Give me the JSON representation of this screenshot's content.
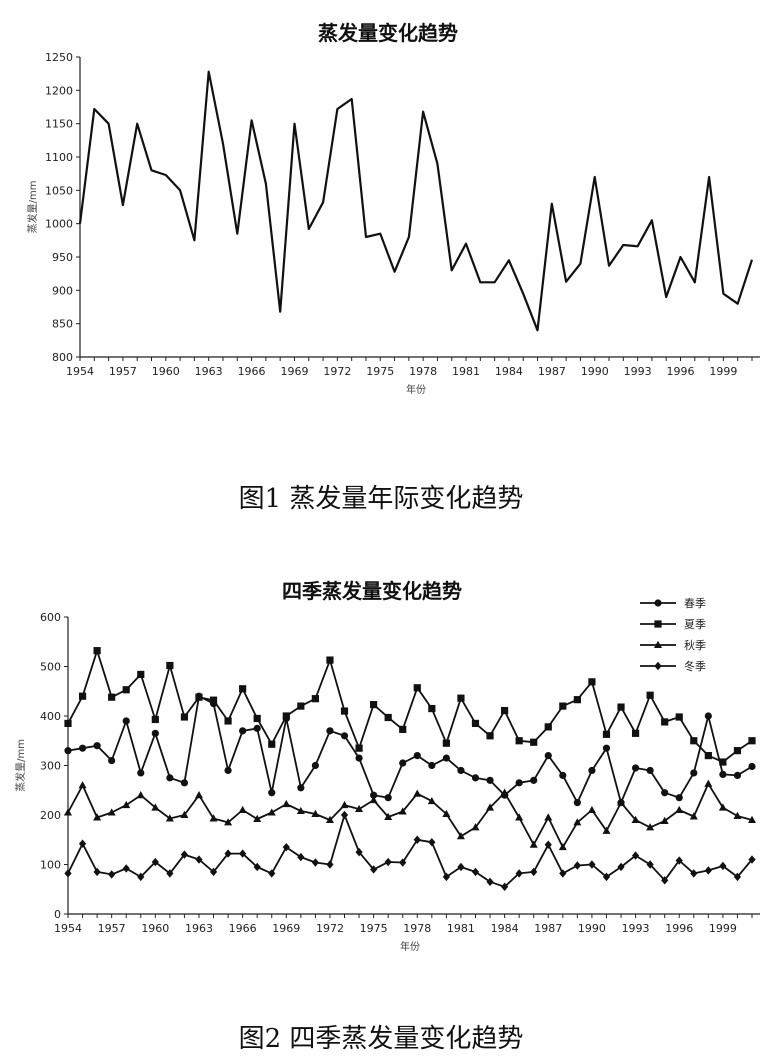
{
  "chart_data": [
    {
      "type": "line",
      "title": "蒸发量变化趋势",
      "xlabel": "年份",
      "ylabel": "蒸发量/mm",
      "ylim": [
        800,
        1250
      ],
      "yticks": [
        800,
        850,
        900,
        950,
        1000,
        1050,
        1100,
        1150,
        1200,
        1250
      ],
      "xlim": [
        1954,
        2001
      ],
      "xticks": [
        1954,
        1957,
        1960,
        1963,
        1966,
        1969,
        1972,
        1975,
        1978,
        1981,
        1984,
        1987,
        1990,
        1993,
        1996,
        1999
      ],
      "grid": false,
      "x": [
        1954,
        1955,
        1956,
        1957,
        1958,
        1959,
        1960,
        1961,
        1962,
        1963,
        1964,
        1965,
        1966,
        1967,
        1968,
        1969,
        1970,
        1971,
        1972,
        1973,
        1974,
        1975,
        1976,
        1977,
        1978,
        1979,
        1980,
        1981,
        1982,
        1983,
        1984,
        1985,
        1986,
        1987,
        1988,
        1989,
        1990,
        1991,
        1992,
        1993,
        1994,
        1995,
        1996,
        1997,
        1998,
        1999,
        2000,
        2001
      ],
      "series": [
        {
          "values": [
            1000,
            1172,
            1150,
            1028,
            1150,
            1080,
            1073,
            1050,
            975,
            1228,
            1120,
            985,
            1155,
            1060,
            868,
            1150,
            992,
            1032,
            1172,
            1187,
            980,
            985,
            928,
            980,
            1168,
            1090,
            930,
            970,
            912,
            912,
            945,
            895,
            840,
            1030,
            913,
            940,
            1070,
            937,
            968,
            966,
            1005,
            890,
            950,
            912,
            1070,
            895,
            880,
            946
          ]
        }
      ],
      "color": "#111111"
    },
    {
      "type": "line",
      "title": "四季蒸发量变化趋势",
      "xlabel": "年份",
      "ylabel": "蒸发量/mm",
      "ylim": [
        0,
        600
      ],
      "yticks": [
        0,
        100,
        200,
        300,
        400,
        500,
        600
      ],
      "xlim": [
        1954,
        2001
      ],
      "xticks": [
        1954,
        1957,
        1960,
        1963,
        1966,
        1969,
        1972,
        1975,
        1978,
        1981,
        1984,
        1987,
        1990,
        1993,
        1996,
        1999
      ],
      "grid": false,
      "legend_position": "top-right",
      "x": [
        1954,
        1955,
        1956,
        1957,
        1958,
        1959,
        1960,
        1961,
        1962,
        1963,
        1964,
        1965,
        1966,
        1967,
        1968,
        1969,
        1970,
        1971,
        1972,
        1973,
        1974,
        1975,
        1976,
        1977,
        1978,
        1979,
        1980,
        1981,
        1982,
        1983,
        1984,
        1985,
        1986,
        1987,
        1988,
        1989,
        1990,
        1991,
        1992,
        1993,
        1994,
        1995,
        1996,
        1997,
        1998,
        1999,
        2000,
        2001
      ],
      "series": [
        {
          "name": "春季",
          "marker": "circle",
          "values": [
            330,
            335,
            340,
            310,
            390,
            285,
            365,
            275,
            265,
            440,
            425,
            290,
            370,
            375,
            245,
            395,
            255,
            300,
            370,
            360,
            315,
            240,
            235,
            305,
            320,
            300,
            315,
            290,
            275,
            270,
            240,
            265,
            270,
            320,
            280,
            225,
            290,
            335,
            225,
            295,
            290,
            245,
            235,
            285,
            400,
            282,
            280,
            298
          ]
        },
        {
          "name": "夏季",
          "marker": "square",
          "values": [
            385,
            440,
            532,
            438,
            453,
            484,
            393,
            502,
            398,
            438,
            432,
            390,
            455,
            395,
            343,
            400,
            420,
            435,
            513,
            410,
            335,
            423,
            397,
            373,
            457,
            415,
            345,
            436,
            385,
            360,
            411,
            350,
            347,
            378,
            420,
            433,
            469,
            363,
            418,
            365,
            442,
            388,
            398,
            350,
            320,
            307,
            330,
            350
          ]
        },
        {
          "name": "秋季",
          "marker": "triangle",
          "values": [
            205,
            260,
            195,
            205,
            220,
            240,
            215,
            193,
            200,
            240,
            193,
            185,
            210,
            192,
            205,
            222,
            208,
            202,
            190,
            220,
            212,
            230,
            196,
            207,
            243,
            228,
            202,
            157,
            175,
            215,
            245,
            195,
            140,
            195,
            135,
            185,
            210,
            168,
            225,
            190,
            175,
            188,
            210,
            197,
            263,
            215,
            198,
            190
          ]
        },
        {
          "name": "冬季",
          "marker": "diamond",
          "values": [
            82,
            142,
            85,
            80,
            92,
            75,
            105,
            82,
            120,
            110,
            85,
            122,
            122,
            95,
            82,
            135,
            115,
            104,
            100,
            200,
            125,
            90,
            105,
            104,
            150,
            145,
            75,
            95,
            85,
            65,
            55,
            82,
            85,
            140,
            82,
            98,
            100,
            75,
            95,
            118,
            100,
            68,
            108,
            82,
            88,
            97,
            75,
            110
          ]
        }
      ],
      "color": "#111111"
    }
  ],
  "captions": {
    "fig1": "图1  蒸发量年际变化趋势",
    "fig2": "图2  四季蒸发量变化趋势"
  }
}
